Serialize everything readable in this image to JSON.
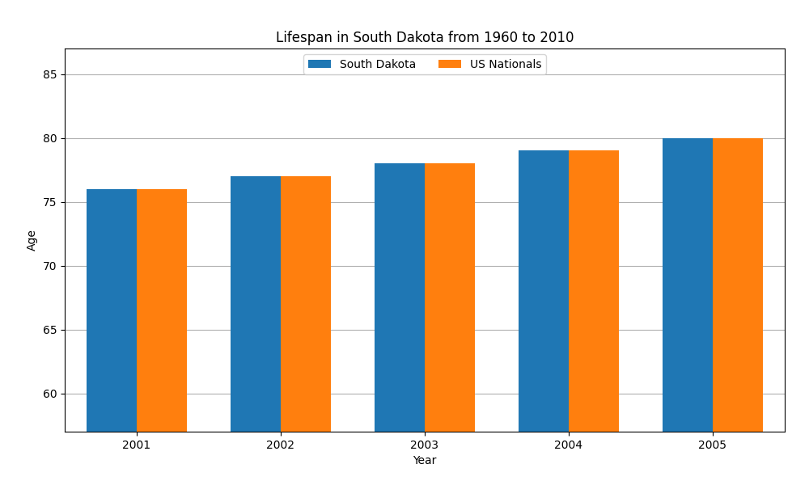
{
  "chart_data": {
    "type": "bar",
    "title": "Lifespan in South Dakota from 1960 to 2010",
    "xlabel": "Year",
    "ylabel": "Age",
    "categories": [
      "2001",
      "2002",
      "2003",
      "2004",
      "2005"
    ],
    "series": [
      {
        "name": "South Dakota",
        "values": [
          76,
          77,
          78,
          79,
          80
        ]
      },
      {
        "name": "US Nationals",
        "values": [
          76,
          77,
          78,
          79,
          80
        ]
      }
    ],
    "ylim": [
      57,
      87
    ],
    "yticks": [
      60,
      65,
      70,
      75,
      80,
      85
    ],
    "grid": "y",
    "legend": "upper center"
  }
}
